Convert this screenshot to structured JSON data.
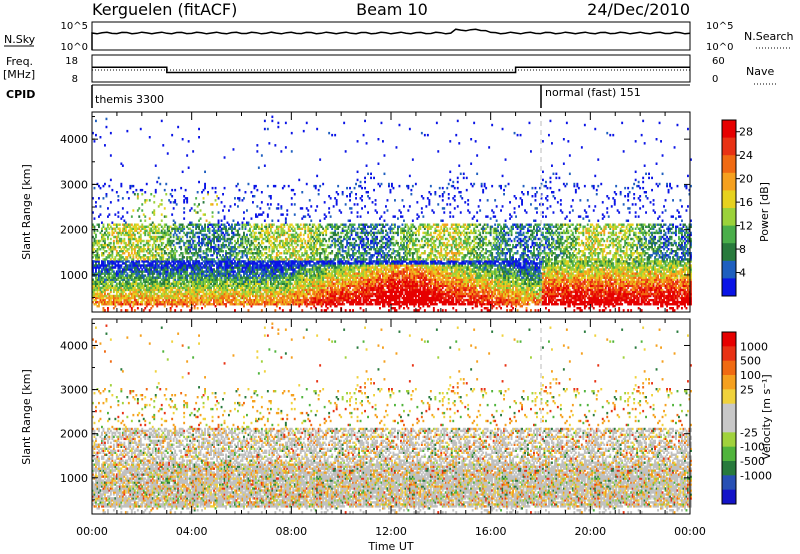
{
  "header": {
    "station": "Kerguelen (fitACF)",
    "beam": "Beam 10",
    "date": "24/Dec/2010"
  },
  "status": {
    "nsky_label": "N.Sky",
    "nsky_ticks": [
      "10^5",
      "10^0"
    ],
    "nsearch_label": "N.Search",
    "nsearch_ticks": [
      "10^5",
      "10^0"
    ],
    "freq_label": [
      "Freq.",
      "[MHz]"
    ],
    "freq_ticks": [
      "18",
      "8"
    ],
    "nave_label": "Nave",
    "nave_ticks": [
      "60",
      "0"
    ],
    "cpid_label": "CPID",
    "cpid_segments": [
      {
        "label": "themis 3300",
        "start_hour": 0
      },
      {
        "label": "normal (fast) 151",
        "start_hour": 18
      }
    ],
    "freq_series_hours": [
      0,
      3,
      3,
      17,
      17,
      24
    ],
    "freq_series_values": [
      13.5,
      13.5,
      11.5,
      11.5,
      13.5,
      13.5
    ]
  },
  "chart_data": [
    {
      "type": "heatmap",
      "name": "power",
      "ylabel": "Slant Range [km]",
      "xlabel": "Time UT",
      "xlim_hours": [
        0,
        24
      ],
      "x_tick_labels": [
        "00:00",
        "04:00",
        "08:00",
        "12:00",
        "16:00",
        "20:00",
        "00:00"
      ],
      "ylim": [
        180,
        4600
      ],
      "y_ticks": [
        1000,
        2000,
        3000,
        4000
      ],
      "colorbar": {
        "label": "Power [dB]",
        "ticks": [
          4,
          8,
          12,
          16,
          20,
          24,
          28
        ],
        "range": [
          0,
          30
        ],
        "colors": [
          "#0a14e6",
          "#1e5fbf",
          "#287a3c",
          "#4aae4a",
          "#9bd23a",
          "#e6d21e",
          "#f5a01e",
          "#f06a12",
          "#e83214",
          "#e60000"
        ]
      }
    },
    {
      "type": "heatmap",
      "name": "velocity",
      "ylabel": "Slant Range [km]",
      "xlabel": "Time UT",
      "xlim_hours": [
        0,
        24
      ],
      "x_tick_labels": [
        "00:00",
        "04:00",
        "08:00",
        "12:00",
        "16:00",
        "20:00",
        "00:00"
      ],
      "ylim": [
        180,
        4600
      ],
      "y_ticks": [
        1000,
        2000,
        3000,
        4000
      ],
      "colorbar": {
        "label": "Velocity [m s⁻¹]",
        "ticks": [
          "1000",
          "500",
          "100",
          "25",
          "-25",
          "-100",
          "-500",
          "-1000"
        ],
        "colors": [
          "#1414c8",
          "#2850b4",
          "#287a3c",
          "#50b43c",
          "#a0d23c",
          "#c8c8c8",
          "#c8c8c8",
          "#f0d23c",
          "#f5a01e",
          "#f06a12",
          "#e83214",
          "#e60000"
        ]
      }
    }
  ],
  "colors": {
    "ground_scatter": "#c0c0c0",
    "divider": "#bbbbbb"
  }
}
